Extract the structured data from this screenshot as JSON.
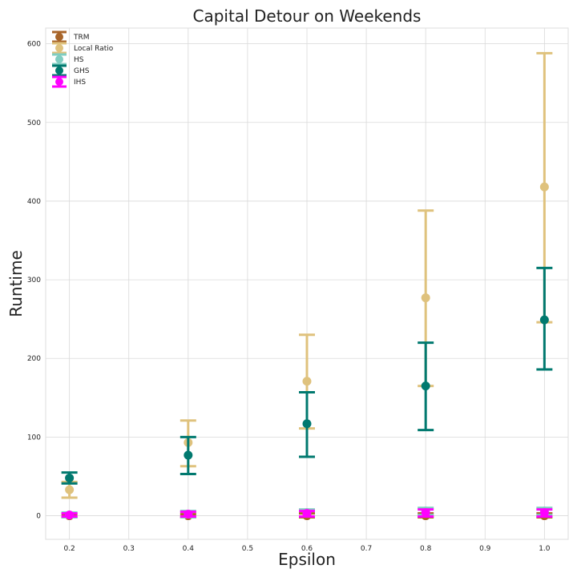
{
  "chart_data": {
    "type": "scatter",
    "title": "Capital Detour on Weekends",
    "xlabel": "Epsilon",
    "ylabel": "Runtime",
    "xlim": [
      0.16,
      1.04
    ],
    "ylim": [
      -30,
      620
    ],
    "x_ticks": [
      0.2,
      0.3,
      0.4,
      0.5,
      0.6,
      0.7,
      0.8,
      0.9,
      1.0
    ],
    "x_tick_labels": [
      "0.2",
      "0.3",
      "0.4",
      "0.5",
      "0.6",
      "0.7",
      "0.8",
      "0.9",
      "1.0"
    ],
    "y_ticks": [
      0,
      100,
      200,
      300,
      400,
      500,
      600
    ],
    "y_tick_labels": [
      "0",
      "100",
      "200",
      "300",
      "400",
      "500",
      "600"
    ],
    "grid": true,
    "legend_position": "top-left",
    "x": [
      0.2,
      0.4,
      0.6,
      0.8,
      1.0
    ],
    "series": [
      {
        "name": "TRM",
        "color": "#a8652a",
        "values": [
          0,
          0,
          0,
          0,
          0
        ],
        "lower": [
          -2,
          -2,
          -2,
          -2,
          -2
        ],
        "upper": [
          2,
          2,
          3,
          3,
          3
        ]
      },
      {
        "name": "Local Ratio",
        "color": "#dfc27d",
        "values": [
          33,
          93,
          171,
          277,
          418
        ],
        "lower": [
          23,
          63,
          111,
          165,
          246
        ],
        "upper": [
          43,
          121,
          230,
          388,
          588
        ]
      },
      {
        "name": "HS",
        "color": "#80cdc1",
        "values": [
          1,
          2,
          4,
          6,
          6
        ],
        "lower": [
          -2,
          -2,
          -1,
          1,
          1
        ],
        "upper": [
          4,
          6,
          8,
          10,
          10
        ]
      },
      {
        "name": "GHS",
        "color": "#01796f",
        "values": [
          48,
          77,
          117,
          165,
          249
        ],
        "lower": [
          41,
          53,
          75,
          109,
          186
        ],
        "upper": [
          55,
          100,
          157,
          220,
          315
        ]
      },
      {
        "name": "IHS",
        "color": "#ff00ff",
        "values": [
          1,
          2,
          3,
          4,
          4
        ],
        "lower": [
          -1,
          -1,
          -1,
          -1,
          -1
        ],
        "upper": [
          3,
          5,
          6,
          8,
          8
        ]
      }
    ]
  }
}
